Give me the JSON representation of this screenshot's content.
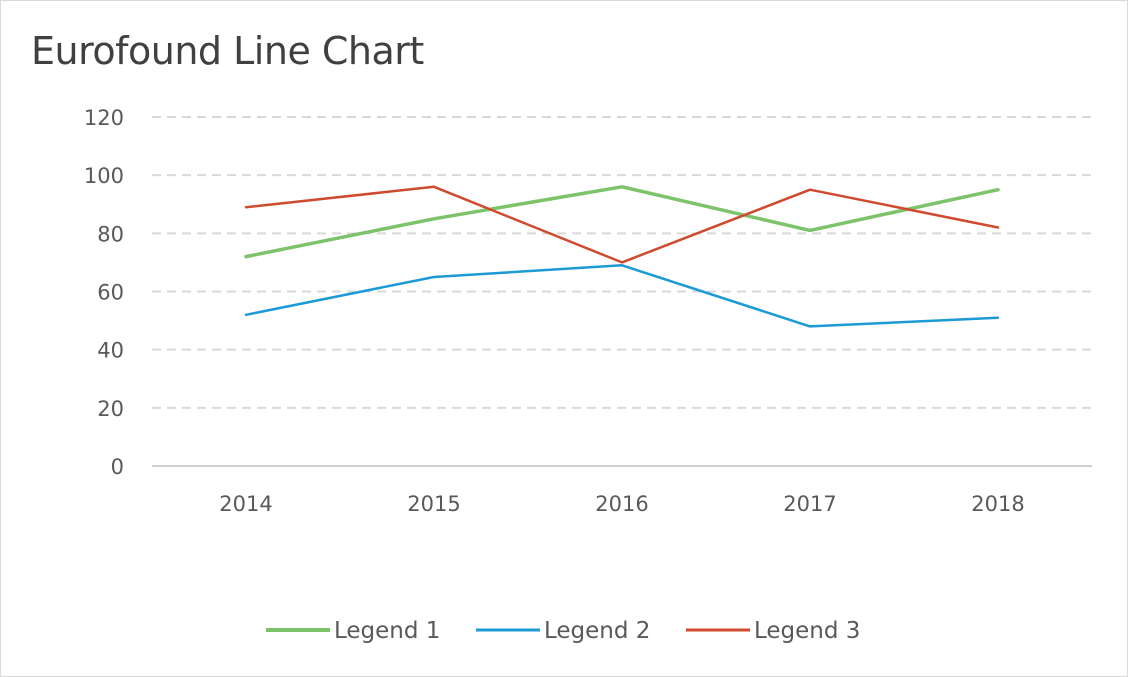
{
  "chart_data": {
    "type": "line",
    "title": "Eurofound Line Chart",
    "xlabel": "",
    "ylabel": "",
    "categories": [
      "2014",
      "2015",
      "2016",
      "2017",
      "2018"
    ],
    "ylim": [
      0,
      120
    ],
    "yticks": [
      0,
      20,
      40,
      60,
      80,
      100,
      120
    ],
    "grid": true,
    "legend_position": "bottom",
    "series": [
      {
        "name": "Legend 1",
        "color": "#7cc36a",
        "values": [
          72,
          85,
          96,
          81,
          95
        ]
      },
      {
        "name": "Legend 2",
        "color": "#1c9ad6",
        "values": [
          52,
          65,
          69,
          48,
          51
        ]
      },
      {
        "name": "Legend 3",
        "color": "#cf4a2e",
        "values": [
          89,
          96,
          70,
          95,
          82
        ]
      }
    ]
  }
}
